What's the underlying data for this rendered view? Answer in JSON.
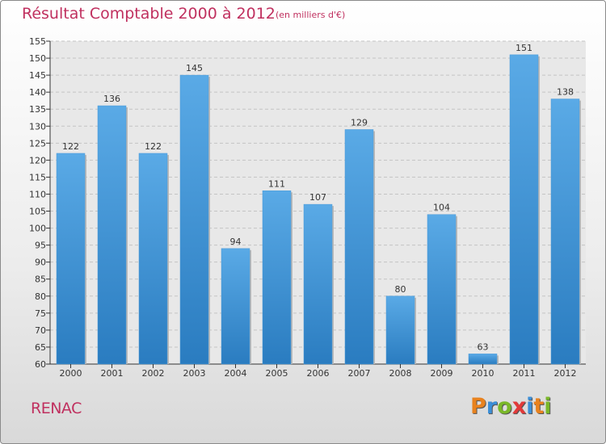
{
  "header": {
    "title": "Résultat Comptable 2000 à 2012",
    "subtitle": "(en milliers d'€)"
  },
  "footer": {
    "commune": "RENAC",
    "logo_letters": [
      "P",
      "r",
      "o",
      "x",
      "i",
      "t",
      "i"
    ],
    "logo_colors": [
      "#e8821e",
      "#3c8fd8",
      "#7ab829",
      "#e23a3a",
      "#3c8fd8",
      "#e8821e",
      "#7ab829"
    ]
  },
  "chart_data": {
    "type": "bar",
    "categories": [
      "2000",
      "2001",
      "2002",
      "2003",
      "2004",
      "2005",
      "2006",
      "2007",
      "2008",
      "2009",
      "2010",
      "2011",
      "2012"
    ],
    "values": [
      122,
      136,
      122,
      145,
      94,
      111,
      107,
      129,
      80,
      104,
      63,
      151,
      138
    ],
    "data_labels": [
      "122",
      "136",
      "122",
      "145",
      "94",
      "111",
      "107",
      "129",
      "80",
      "104",
      "63",
      "151",
      "138"
    ],
    "y_ticks": [
      "60",
      "65",
      "70",
      "75",
      "80",
      "85",
      "90",
      "95",
      "100",
      "105",
      "110",
      "115",
      "120",
      "125",
      "130",
      "135",
      "140",
      "145",
      "150",
      "155"
    ],
    "ylim": [
      60,
      155
    ],
    "grid": true,
    "bar_color_light": "#5aaae6",
    "bar_color_dark": "#2a7cc0",
    "title": "Résultat Comptable 2000 à 2012",
    "xlabel": "",
    "ylabel": ""
  }
}
